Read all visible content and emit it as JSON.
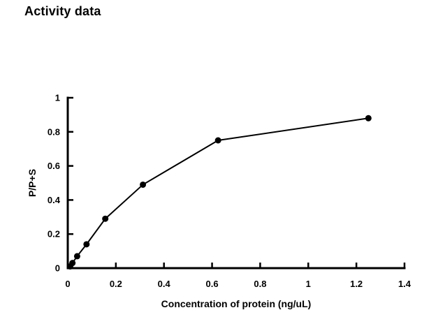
{
  "page": {
    "background": "#ffffff",
    "foreground": "#000000"
  },
  "chart_data": {
    "type": "line",
    "title": "Activity data",
    "xlabel": "Concentration of protein (ng/uL)",
    "ylabel": "P/P+S",
    "x": [
      0.0098,
      0.0195,
      0.039,
      0.078,
      0.156,
      0.3125,
      0.625,
      1.25
    ],
    "y": [
      0.01,
      0.03,
      0.07,
      0.14,
      0.29,
      0.49,
      0.75,
      0.88
    ],
    "xlim": [
      0,
      1.4
    ],
    "ylim": [
      0,
      1
    ],
    "x_ticks": [
      0,
      0.2,
      0.4,
      0.6,
      0.8,
      1,
      1.2,
      1.4
    ],
    "y_ticks": [
      0,
      0.2,
      0.4,
      0.6,
      0.8,
      1
    ],
    "tick_direction": "in",
    "grid": false,
    "legend": false,
    "marker": "filled-circle",
    "marker_color": "#000000",
    "line_color": "#000000",
    "axis_color": "#000000"
  }
}
